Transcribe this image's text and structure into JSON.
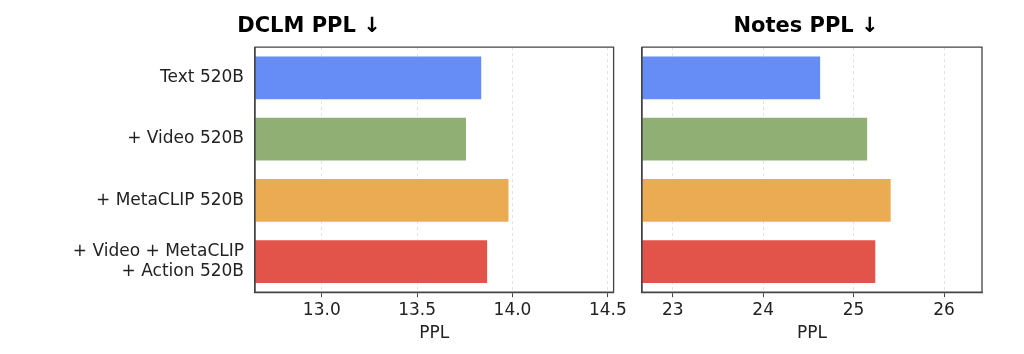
{
  "chart_data": [
    {
      "type": "bar",
      "orientation": "horizontal",
      "title": "DCLM PPL ↓",
      "xlabel": "PPL",
      "categories": [
        "Text 520B",
        "+ Video 520B",
        "+ MetaCLIP 520B",
        "+ Video + MetaCLIP\n+ Action 520B"
      ],
      "values": [
        13.836,
        13.756,
        13.979,
        13.867
      ],
      "colors": [
        "#668cf5",
        "#8faf74",
        "#eaab53",
        "#e2544a"
      ],
      "xlim": [
        12.65,
        14.53
      ],
      "xticks": [
        {
          "value": 13,
          "label": "13.0"
        },
        {
          "value": 13.5,
          "label": "13.5"
        },
        {
          "value": 14,
          "label": "14.0"
        },
        {
          "value": 14.5,
          "label": "14.5"
        }
      ],
      "grid": "x"
    },
    {
      "type": "bar",
      "orientation": "horizontal",
      "title": "Notes PPL ↓",
      "xlabel": "PPL",
      "categories": [
        null,
        null,
        null,
        null
      ],
      "values": [
        24.63,
        25.15,
        25.41,
        25.24
      ],
      "colors": [
        "#668cf5",
        "#8faf74",
        "#eaab53",
        "#e2544a"
      ],
      "xlim": [
        22.66,
        26.42
      ],
      "xticks": [
        23,
        24,
        25,
        26
      ],
      "grid": "x",
      "tick_labels": "x"
    }
  ]
}
